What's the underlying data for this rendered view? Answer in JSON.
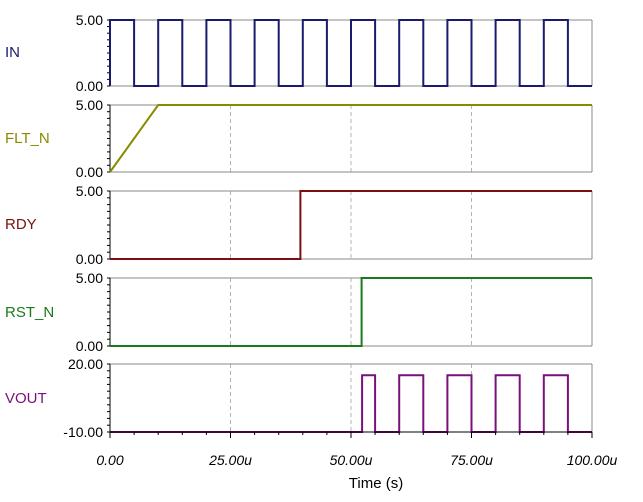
{
  "chart_data": {
    "type": "line",
    "xlabel": "Time (s)",
    "xlim": [
      0,
      100
    ],
    "x_ticks": [
      {
        "value": 0,
        "label": "0.00"
      },
      {
        "value": 25,
        "label": "25.00u"
      },
      {
        "value": 50,
        "label": "50.00u"
      },
      {
        "value": 75,
        "label": "75.00u"
      },
      {
        "value": 100,
        "label": "100.00u"
      }
    ],
    "grid": true,
    "series": [
      {
        "name": "IN",
        "color": "#1a1a6e",
        "ylim": [
          0,
          5
        ],
        "y_tick_labels": [
          "5.00",
          "0.00"
        ],
        "points": [
          [
            0,
            0
          ],
          [
            0,
            5
          ],
          [
            5,
            5
          ],
          [
            5,
            0
          ],
          [
            10,
            0
          ],
          [
            10,
            5
          ],
          [
            15,
            5
          ],
          [
            15,
            0
          ],
          [
            20,
            0
          ],
          [
            20,
            5
          ],
          [
            25,
            5
          ],
          [
            25,
            0
          ],
          [
            30,
            0
          ],
          [
            30,
            5
          ],
          [
            35,
            5
          ],
          [
            35,
            0
          ],
          [
            40,
            0
          ],
          [
            40,
            5
          ],
          [
            45,
            5
          ],
          [
            45,
            0
          ],
          [
            50,
            0
          ],
          [
            50,
            5
          ],
          [
            55,
            5
          ],
          [
            55,
            0
          ],
          [
            60,
            0
          ],
          [
            60,
            5
          ],
          [
            65,
            5
          ],
          [
            65,
            0
          ],
          [
            70,
            0
          ],
          [
            70,
            5
          ],
          [
            75,
            5
          ],
          [
            75,
            0
          ],
          [
            80,
            0
          ],
          [
            80,
            5
          ],
          [
            85,
            5
          ],
          [
            85,
            0
          ],
          [
            90,
            0
          ],
          [
            90,
            5
          ],
          [
            95,
            5
          ],
          [
            95,
            0
          ],
          [
            100,
            0
          ]
        ]
      },
      {
        "name": "FLT_N",
        "color": "#8a8a00",
        "ylim": [
          0,
          5
        ],
        "y_tick_labels": [
          "5.00",
          "0.00"
        ],
        "points": [
          [
            0,
            0
          ],
          [
            10,
            5
          ],
          [
            100,
            5
          ]
        ]
      },
      {
        "name": "RDY",
        "color": "#7a1010",
        "ylim": [
          0,
          5
        ],
        "y_tick_labels": [
          "5.00",
          "0.00"
        ],
        "points": [
          [
            0,
            0
          ],
          [
            39.5,
            0
          ],
          [
            39.5,
            5
          ],
          [
            100,
            5
          ]
        ]
      },
      {
        "name": "RST_N",
        "color": "#1a7a1a",
        "ylim": [
          0,
          5
        ],
        "y_tick_labels": [
          "5.00",
          "0.00"
        ],
        "points": [
          [
            0,
            0
          ],
          [
            52.2,
            0
          ],
          [
            52.2,
            5
          ],
          [
            100,
            5
          ]
        ]
      },
      {
        "name": "VOUT",
        "color": "#7a107a",
        "ylim": [
          -10,
          20
        ],
        "y_tick_labels": [
          "20.00",
          "-10.00"
        ],
        "points": [
          [
            0,
            -10
          ],
          [
            52.3,
            -10
          ],
          [
            52.3,
            15
          ],
          [
            55,
            15
          ],
          [
            55,
            -10
          ],
          [
            60,
            -10
          ],
          [
            60,
            15
          ],
          [
            65,
            15
          ],
          [
            65,
            -10
          ],
          [
            70,
            -10
          ],
          [
            70,
            15
          ],
          [
            75,
            15
          ],
          [
            75,
            -10
          ],
          [
            80,
            -10
          ],
          [
            80,
            15
          ],
          [
            85,
            15
          ],
          [
            85,
            -10
          ],
          [
            90,
            -10
          ],
          [
            90,
            15
          ],
          [
            95,
            15
          ],
          [
            95,
            -10
          ],
          [
            100,
            -10
          ]
        ]
      }
    ]
  }
}
